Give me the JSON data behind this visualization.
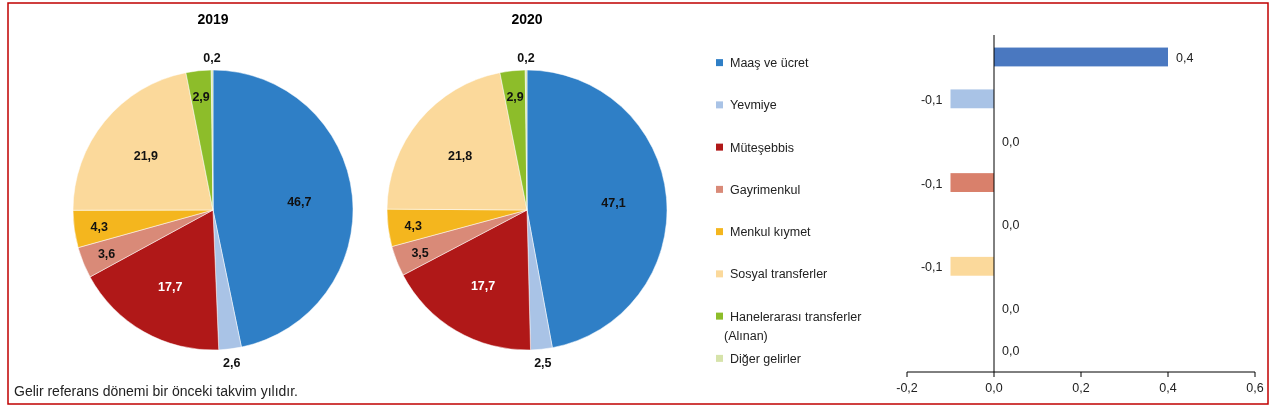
{
  "chart_data": [
    {
      "type": "pie",
      "title": "2019",
      "categories": [
        "Maaş ve ücret",
        "Yevmiye",
        "Müteşebbis",
        "Gayrimenkul",
        "Menkul kıymet",
        "Sosyal transferler",
        "Hanelerarası transferler (Alınan)",
        "Diğer gelirler"
      ],
      "values": [
        46.7,
        2.6,
        17.7,
        3.6,
        4.3,
        21.9,
        2.9,
        0.2
      ],
      "value_labels": [
        "46,7",
        "2,6",
        "17,7",
        "3,6",
        "4,3",
        "21,9",
        "2,9",
        "0,2"
      ],
      "colors": [
        "#2f7fc6",
        "#a9c3e6",
        "#b01818",
        "#d98a78",
        "#f4b61e",
        "#fbd99b",
        "#8dbd2a",
        "#d6e3aa"
      ],
      "legend": "right",
      "annotations": [
        "Gelir referans dönemi bir önceki takvim yılıdır."
      ]
    },
    {
      "type": "pie",
      "title": "2020",
      "categories": [
        null,
        null,
        null,
        null,
        null,
        null,
        null,
        null
      ],
      "values": [
        47.1,
        2.5,
        17.7,
        3.5,
        4.3,
        21.8,
        2.9,
        0.2
      ],
      "value_labels": [
        "47,1",
        "2,5",
        "17,7",
        "3,5",
        "4,3",
        "21,8",
        "2,9",
        "0,2"
      ],
      "colors": [
        "#2f7fc6",
        "#a9c3e6",
        "#b01818",
        "#d98a78",
        "#f4b61e",
        "#fbd99b",
        "#8dbd2a",
        "#d6e3aa"
      ]
    },
    {
      "type": "bar",
      "orientation": "horizontal",
      "categories": [
        null,
        null,
        null,
        null,
        null,
        null,
        null,
        null
      ],
      "values": [
        0.4,
        -0.1,
        0.0,
        -0.1,
        0.0,
        -0.1,
        0.0,
        0.0
      ],
      "colors": [
        "#4a78c0",
        "#a9c3e6",
        "#b01818",
        "#d9806b",
        "#f4b61e",
        "#fbd99b",
        "#8dbd2a",
        "#d6e3aa"
      ],
      "xlim": [
        -0.2,
        0.6
      ],
      "xticks": [
        {
          "value": -0.2,
          "label": "-0,2"
        },
        {
          "value": 0,
          "label": "0,0"
        },
        {
          "value": 0.2,
          "label": "0,2"
        },
        {
          "value": 0.4,
          "label": "0,4"
        },
        {
          "value": 0.6,
          "label": "0,6"
        }
      ],
      "tick_labels": "x",
      "value_labels": [
        "0,4",
        "-0,1",
        "0,0",
        "-0,1",
        "0,0",
        "-0,1",
        "0,0",
        "0,0"
      ]
    }
  ]
}
